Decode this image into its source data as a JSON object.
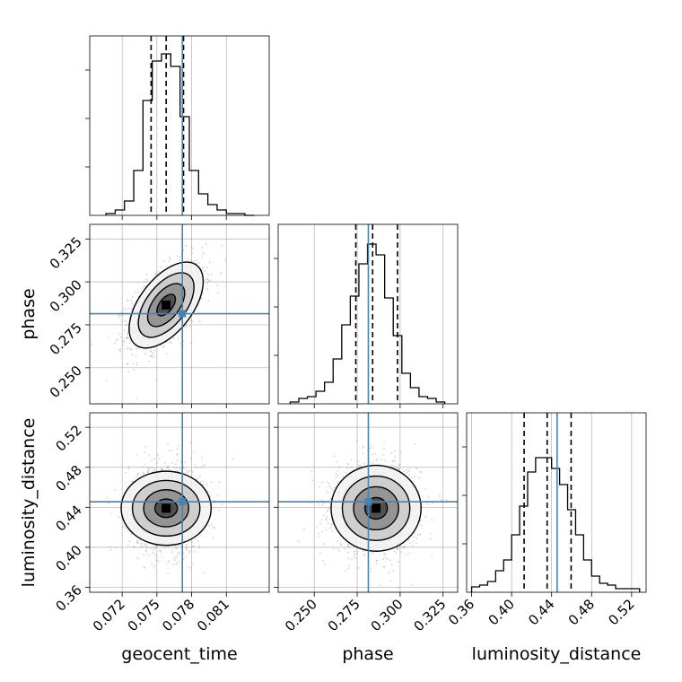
{
  "chart_data": {
    "type": "corner",
    "parameters": [
      "geocent_time",
      "phase",
      "luminosity_distance"
    ],
    "ranges": {
      "geocent_time": [
        0.0692,
        0.0847
      ],
      "phase": [
        0.229,
        0.3335
      ],
      "luminosity_distance": [
        0.355,
        0.5345
      ]
    },
    "ticks": {
      "geocent_time": [
        "0.072",
        "0.075",
        "0.078",
        "0.081"
      ],
      "phase": [
        "0.250",
        "0.275",
        "0.300",
        "0.325"
      ],
      "luminosity_distance": [
        "0.36",
        "0.40",
        "0.44",
        "0.48",
        "0.52"
      ]
    },
    "injection": {
      "geocent_time": 0.0772,
      "phase": 0.2815,
      "luminosity_distance": 0.4455
    },
    "quantiles": {
      "geocent_time": [
        0.0745,
        0.0758,
        0.0773
      ],
      "phase": [
        0.2742,
        0.284,
        0.2985
      ],
      "luminosity_distance": [
        0.4125,
        0.4355,
        0.4595
      ]
    },
    "histograms": {
      "geocent_time": {
        "bin_edges": [
          0.0706,
          0.0714,
          0.0722,
          0.073,
          0.0738,
          0.0746,
          0.0754,
          0.0762,
          0.077,
          0.0778,
          0.0786,
          0.0794,
          0.0802,
          0.081,
          0.0818,
          0.0826,
          0.0834
        ],
        "counts": [
          0.01,
          0.03,
          0.08,
          0.25,
          0.64,
          0.86,
          0.9,
          0.83,
          0.55,
          0.25,
          0.12,
          0.06,
          0.03,
          0.01,
          0.01,
          0.0
        ]
      },
      "phase": {
        "bin_edges": [
          0.236,
          0.241,
          0.246,
          0.251,
          0.256,
          0.261,
          0.266,
          0.271,
          0.276,
          0.281,
          0.286,
          0.291,
          0.296,
          0.301,
          0.306,
          0.311,
          0.316,
          0.321,
          0.326
        ],
        "counts": [
          0.01,
          0.03,
          0.04,
          0.07,
          0.12,
          0.25,
          0.44,
          0.6,
          0.78,
          0.89,
          0.83,
          0.59,
          0.38,
          0.17,
          0.09,
          0.04,
          0.03,
          0.01
        ]
      },
      "luminosity_distance": {
        "bin_edges": [
          0.36,
          0.368,
          0.376,
          0.384,
          0.392,
          0.4,
          0.408,
          0.416,
          0.424,
          0.432,
          0.44,
          0.448,
          0.456,
          0.464,
          0.472,
          0.48,
          0.488,
          0.496,
          0.504,
          0.512,
          0.52,
          0.528
        ],
        "counts": [
          0.03,
          0.04,
          0.06,
          0.12,
          0.18,
          0.32,
          0.48,
          0.67,
          0.75,
          0.75,
          0.69,
          0.6,
          0.46,
          0.32,
          0.18,
          0.09,
          0.05,
          0.04,
          0.02,
          0.02,
          0.02
        ]
      }
    },
    "joint_2d": {
      "phase_vs_geocent_time": {
        "mean": [
          0.0758,
          0.2865
        ],
        "std": [
          0.0016,
          0.0125
        ],
        "corr": 0.55
      },
      "luminosity_distance_vs_geocent_time": {
        "mean": [
          0.0758,
          0.439
        ],
        "std": [
          0.0016,
          0.0225
        ],
        "corr": 0.0
      },
      "luminosity_distance_vs_phase": {
        "mean": [
          0.286,
          0.439
        ],
        "std": [
          0.0125,
          0.0225
        ],
        "corr": 0.0
      }
    },
    "contour_levels_sigma": [
      0.5,
      1.0,
      1.5,
      2.0
    ],
    "grid": true,
    "colors": {
      "histogram": "#000000",
      "quantile_line": "#000000",
      "injection": "#4682b4",
      "grid": "#b0b0b0",
      "scatter": "#555555"
    }
  }
}
